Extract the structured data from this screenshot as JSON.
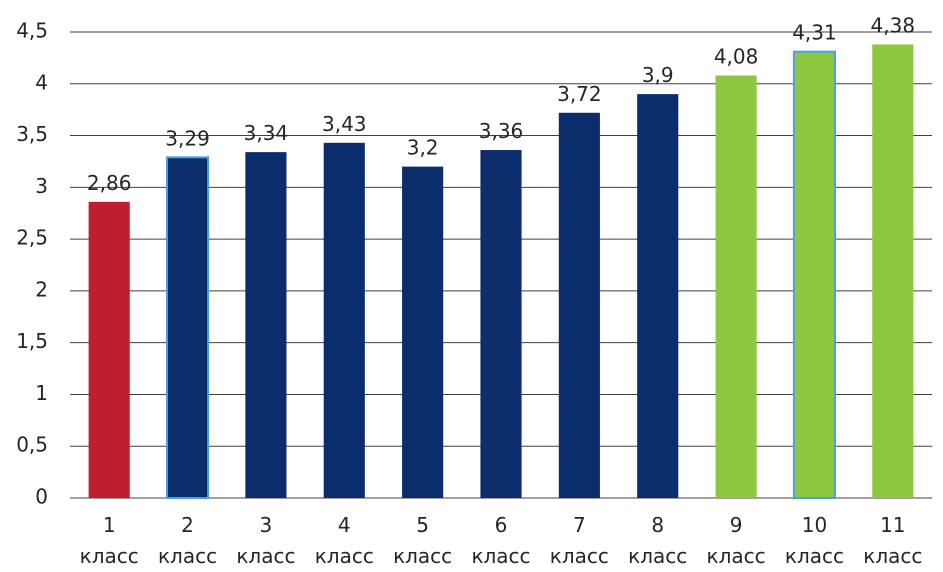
{
  "chart_data": {
    "type": "bar",
    "title": "",
    "xlabel": "",
    "ylabel": "",
    "ylim": [
      0,
      4.5
    ],
    "yticks": [
      "0",
      "0,5",
      "1",
      "1,5",
      "2",
      "2,5",
      "3",
      "3,5",
      "4",
      "4,5"
    ],
    "grid": true,
    "legend": "none",
    "categories": [
      {
        "line1": "1",
        "line2": "класс"
      },
      {
        "line1": "2",
        "line2": "класс"
      },
      {
        "line1": "3",
        "line2": "класс"
      },
      {
        "line1": "4",
        "line2": "класс"
      },
      {
        "line1": "5",
        "line2": "класс"
      },
      {
        "line1": "6",
        "line2": "класс"
      },
      {
        "line1": "7",
        "line2": "класс"
      },
      {
        "line1": "8",
        "line2": "класс"
      },
      {
        "line1": "9",
        "line2": "класс"
      },
      {
        "line1": "10",
        "line2": "класс"
      },
      {
        "line1": "11",
        "line2": "класс"
      }
    ],
    "values": [
      2.86,
      3.29,
      3.34,
      3.43,
      3.2,
      3.36,
      3.72,
      3.9,
      4.08,
      4.31,
      4.38
    ],
    "data_labels": [
      "2,86",
      "3,29",
      "3,34",
      "3,43",
      "3,2",
      "3,36",
      "3,72",
      "3,9",
      "4,08",
      "4,31",
      "4,38"
    ],
    "bar_colors": [
      "#BE1E2D",
      "#0C2D6B",
      "#0C2D6B",
      "#0C2D6B",
      "#0C2D6B",
      "#0C2D6B",
      "#0C2D6B",
      "#0C2D6B",
      "#8DC63F",
      "#8DC63F",
      "#8DC63F"
    ],
    "bar_outlines": [
      "",
      "#4F9FE0",
      "",
      "",
      "",
      "",
      "",
      "",
      "",
      "#4F9FE0",
      ""
    ],
    "grid_color": "#404040",
    "axis_color": "#404040"
  }
}
